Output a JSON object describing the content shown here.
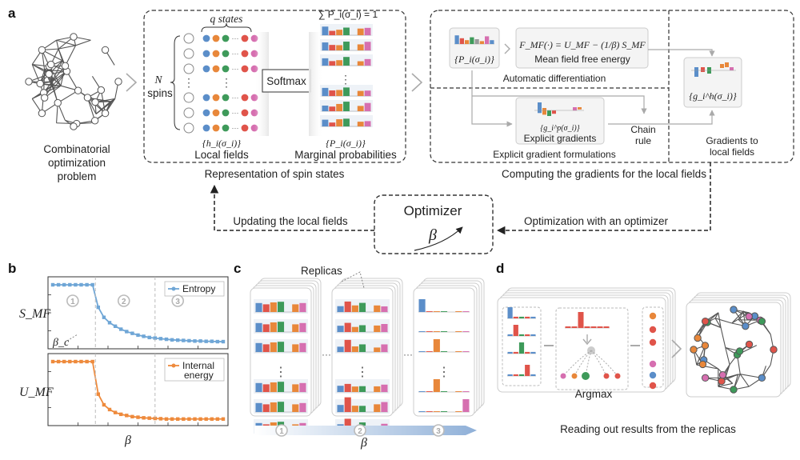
{
  "panels": {
    "a": "a",
    "b": "b",
    "c": "c",
    "d": "d"
  },
  "a": {
    "problem_label_1": "Combinatorial",
    "problem_label_2": "optimization",
    "problem_label_3": "problem",
    "q_states": "q states",
    "n_label": "N",
    "spins_label": "spins",
    "sum_constraint": "∑ P_i(σ_i) = 1",
    "softmax": "Softmax",
    "local_fields_math": "{h_i(σ_i)}",
    "local_fields": "Local fields",
    "marginal_math": "{P_i(σ_i)}",
    "marginal": "Marginal probabilities",
    "representation": "Representation of spin states",
    "pi_math": "{P_i(σ_i)}",
    "free_energy_eq": "F_MF(·) = U_MF − (1/β) S_MF",
    "free_energy": "Mean field free energy",
    "auto_diff": "Automatic differentiation",
    "gp_math": "{g_i^p(σ_i)}",
    "explicit_grad": "Explicit gradients",
    "explicit_form": "Explicit gradient formulations",
    "chain_rule_1": "Chain",
    "chain_rule_2": "rule",
    "gh_math": "{g_i^h(σ_i)}",
    "grad_to_1": "Gradients to",
    "grad_to_2": "local fields",
    "computing": "Computing the gradients for the local fields",
    "updating": "Updating the local fields",
    "optimizer": "Optimizer",
    "beta": "β",
    "opt_with": "Optimization with an optimizer"
  },
  "b": {
    "entropy_legend": "Entropy",
    "internal_legend_1": "Internal",
    "internal_legend_2": "energy",
    "s_label": "S_MF",
    "u_label": "U_MF",
    "beta_c": "β_c",
    "x_label": "β",
    "circle_1": "1",
    "circle_2": "2",
    "circle_3": "3"
  },
  "c": {
    "replicas": "Replicas",
    "x_label": "β",
    "circle_1": "1",
    "circle_2": "2",
    "circle_3": "3"
  },
  "d": {
    "argmax": "Argmax",
    "reading": "Reading out results from the replicas"
  },
  "colors": {
    "blue": "#5b8ec9",
    "orange": "#e8873a",
    "green": "#3e9a5a",
    "red": "#e0544a",
    "pink": "#d66fb0",
    "gray": "#9a9a9a",
    "entropy_line": "#6fa6d6",
    "energy_line": "#ee8a3c"
  },
  "chart_data": [
    {
      "type": "line",
      "title": "",
      "xlabel": "β",
      "ylabel": "S_MF",
      "series": [
        {
          "name": "Entropy",
          "values": [
            1.0,
            1.0,
            1.0,
            1.0,
            1.0,
            1.0,
            1.0,
            1.0,
            0.62,
            0.45,
            0.36,
            0.3,
            0.25,
            0.21,
            0.18,
            0.15,
            0.13,
            0.11,
            0.1,
            0.09,
            0.08,
            0.07,
            0.065,
            0.06,
            0.055,
            0.05,
            0.05,
            0.045,
            0.045,
            0.04,
            0.04
          ]
        }
      ],
      "x": [
        0,
        1,
        2,
        3,
        4,
        5,
        6,
        7,
        8,
        9,
        10,
        11,
        12,
        13,
        14,
        15,
        16,
        17,
        18,
        19,
        20,
        21,
        22,
        23,
        24,
        25,
        26,
        27,
        28,
        29,
        30
      ],
      "annotations": [
        "β_c",
        "1",
        "2",
        "3"
      ]
    },
    {
      "type": "line",
      "title": "",
      "xlabel": "β",
      "ylabel": "U_MF",
      "series": [
        {
          "name": "Internal energy",
          "values": [
            1.0,
            1.0,
            1.0,
            1.0,
            1.0,
            1.0,
            1.0,
            1.0,
            0.45,
            0.27,
            0.19,
            0.14,
            0.11,
            0.09,
            0.07,
            0.06,
            0.05,
            0.045,
            0.04,
            0.035,
            0.03,
            0.03,
            0.03,
            0.03,
            0.03,
            0.03,
            0.03,
            0.03,
            0.03,
            0.03,
            0.03
          ]
        }
      ],
      "x": [
        0,
        1,
        2,
        3,
        4,
        5,
        6,
        7,
        8,
        9,
        10,
        11,
        12,
        13,
        14,
        15,
        16,
        17,
        18,
        19,
        20,
        21,
        22,
        23,
        24,
        25,
        26,
        27,
        28,
        29,
        30
      ]
    }
  ]
}
